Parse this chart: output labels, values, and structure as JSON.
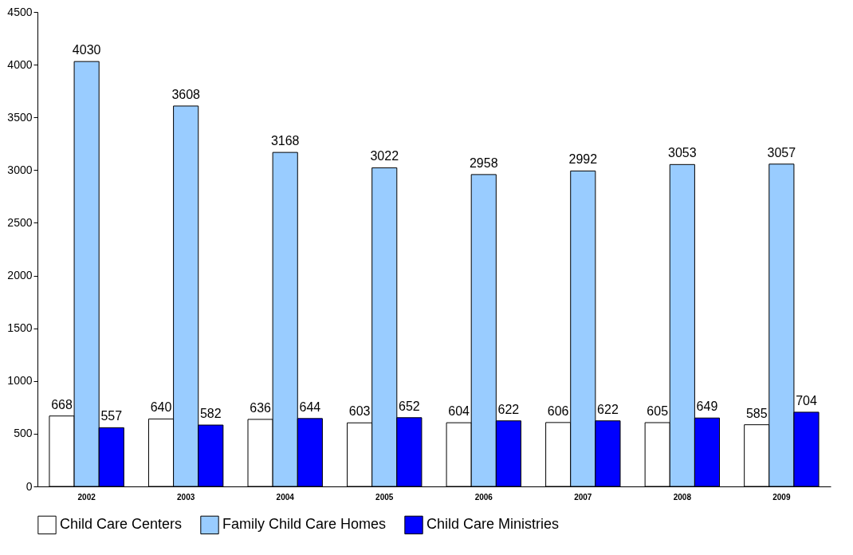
{
  "chart_data": {
    "type": "bar",
    "categories": [
      "2002",
      "2003",
      "2004",
      "2005",
      "2006",
      "2007",
      "2008",
      "2009"
    ],
    "series": [
      {
        "name": "Child Care Centers",
        "color": "#ffffff",
        "values": [
          668,
          640,
          636,
          603,
          604,
          606,
          605,
          585
        ]
      },
      {
        "name": "Family Child Care Homes",
        "color": "#99ccff",
        "values": [
          4030,
          3608,
          3168,
          3022,
          2958,
          2992,
          3053,
          3057
        ]
      },
      {
        "name": "Child Care Ministries",
        "color": "#0000ff",
        "values": [
          557,
          582,
          644,
          652,
          622,
          622,
          649,
          704
        ]
      }
    ],
    "ylim": [
      0,
      4500
    ],
    "yticks": [
      0,
      500,
      1000,
      1500,
      2000,
      2500,
      3000,
      3500,
      4000,
      4500
    ],
    "grid": false,
    "legend": "bottom",
    "data_labels": true
  }
}
